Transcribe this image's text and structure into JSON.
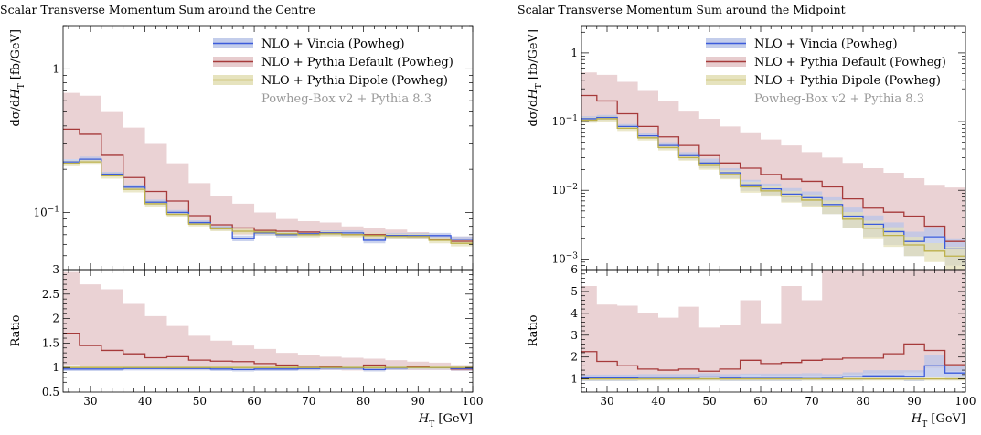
{
  "colors": {
    "vincia": "#3b5bdb",
    "vincia_band": "#b9c4e8",
    "default": "#a63a3a",
    "default_band": "#e3c3c6",
    "dipole": "#bdb14a",
    "dipole_band": "#e2deb3",
    "note": "#999999"
  },
  "chart_data": [
    {
      "type": "line",
      "title": "Scalar Transverse Momentum Sum around the Centre",
      "xlabel": "H_T [GeV]",
      "xlabel_main": "H",
      "xlabel_sub": "T",
      "xlabel_unit": "[GeV]",
      "ylabel": "dσ/dH_T [fb/GeV]",
      "ylabel_lead": "dσ/d",
      "ylabel_var": "H",
      "ylabel_sub": "T",
      "ylabel_unit": "[fb/GeV]",
      "ratio_ylabel": "Ratio",
      "xlim": [
        25,
        100
      ],
      "ylim": [
        0.04,
        2.0
      ],
      "yscale": "log",
      "ratio_ylim": [
        0.5,
        3.0
      ],
      "x_ticks": [
        30,
        40,
        50,
        60,
        70,
        80,
        90,
        100
      ],
      "x_ticks_label": [
        "30",
        "40",
        "50",
        "60",
        "70",
        "80",
        "90",
        "100"
      ],
      "y_ticks": [
        1,
        0.1
      ],
      "y_ticks_label": [
        "1",
        "10^{−1}"
      ],
      "ratio_ticks": [
        0.5,
        1,
        1.5,
        2,
        2.5,
        3
      ],
      "ratio_ticks_label": [
        "0.5",
        "1",
        "1.5",
        "2",
        "2.5",
        "3"
      ],
      "legend_position": "top-right",
      "legend": [
        "NLO + Vincia (Powheg)",
        "NLO + Pythia Default (Powheg)",
        "NLO + Pythia Dipole (Powheg)"
      ],
      "legend_note": "Powheg-Box v2 + Pythia 8.3",
      "bin_edges": [
        25,
        28,
        32,
        36,
        40,
        44,
        48,
        52,
        56,
        60,
        64,
        68,
        72,
        76,
        80,
        84,
        88,
        92,
        96,
        100
      ],
      "series": [
        {
          "key": "vincia",
          "values": [
            0.225,
            0.235,
            0.185,
            0.15,
            0.118,
            0.1,
            0.085,
            0.078,
            0.066,
            0.072,
            0.07,
            0.071,
            0.072,
            0.072,
            0.064,
            0.069,
            0.069,
            0.069,
            0.065
          ],
          "band_low": [
            0.215,
            0.225,
            0.178,
            0.144,
            0.113,
            0.096,
            0.082,
            0.075,
            0.063,
            0.069,
            0.067,
            0.068,
            0.069,
            0.069,
            0.061,
            0.066,
            0.066,
            0.066,
            0.062
          ],
          "band_high": [
            0.235,
            0.245,
            0.192,
            0.156,
            0.123,
            0.104,
            0.088,
            0.081,
            0.069,
            0.075,
            0.073,
            0.074,
            0.075,
            0.075,
            0.067,
            0.072,
            0.072,
            0.072,
            0.068
          ]
        },
        {
          "key": "default",
          "values": [
            0.38,
            0.35,
            0.25,
            0.175,
            0.14,
            0.12,
            0.095,
            0.082,
            0.078,
            0.075,
            0.074,
            0.073,
            0.072,
            0.07,
            0.07,
            0.069,
            0.068,
            0.065,
            0.063
          ],
          "band_low": [
            0.235,
            0.23,
            0.18,
            0.146,
            0.117,
            0.098,
            0.084,
            0.077,
            0.07,
            0.07,
            0.069,
            0.069,
            0.069,
            0.068,
            0.066,
            0.067,
            0.066,
            0.064,
            0.061
          ],
          "band_high": [
            0.68,
            0.65,
            0.5,
            0.39,
            0.3,
            0.22,
            0.16,
            0.13,
            0.115,
            0.1,
            0.09,
            0.087,
            0.085,
            0.08,
            0.078,
            0.076,
            0.073,
            0.07,
            0.068
          ]
        },
        {
          "key": "dipole",
          "values": [
            0.22,
            0.225,
            0.18,
            0.145,
            0.115,
            0.097,
            0.083,
            0.077,
            0.074,
            0.073,
            0.071,
            0.07,
            0.071,
            0.07,
            0.069,
            0.068,
            0.068,
            0.064,
            0.061
          ],
          "band_low": [
            0.21,
            0.215,
            0.172,
            0.138,
            0.11,
            0.093,
            0.08,
            0.074,
            0.071,
            0.07,
            0.068,
            0.067,
            0.068,
            0.067,
            0.066,
            0.065,
            0.065,
            0.061,
            0.058
          ],
          "band_high": [
            0.23,
            0.235,
            0.188,
            0.152,
            0.12,
            0.101,
            0.086,
            0.08,
            0.077,
            0.076,
            0.074,
            0.073,
            0.074,
            0.073,
            0.072,
            0.071,
            0.071,
            0.067,
            0.064
          ]
        }
      ],
      "ratio_series": [
        {
          "key": "vincia",
          "values": [
            0.97,
            0.97,
            0.97,
            0.98,
            0.98,
            0.98,
            0.98,
            0.97,
            0.96,
            0.97,
            0.97,
            0.98,
            0.99,
            0.99,
            0.96,
            0.99,
            1.0,
            1.0,
            0.98
          ],
          "band_low": [
            0.93,
            0.93,
            0.93,
            0.94,
            0.94,
            0.94,
            0.94,
            0.93,
            0.92,
            0.93,
            0.93,
            0.94,
            0.95,
            0.95,
            0.92,
            0.95,
            0.96,
            0.96,
            0.94
          ],
          "band_high": [
            1.01,
            1.01,
            1.01,
            1.02,
            1.02,
            1.02,
            1.02,
            1.01,
            1.0,
            1.01,
            1.01,
            1.02,
            1.03,
            1.03,
            1.0,
            1.03,
            1.04,
            1.04,
            1.02
          ]
        },
        {
          "key": "default",
          "values": [
            1.7,
            1.45,
            1.35,
            1.28,
            1.2,
            1.22,
            1.15,
            1.13,
            1.12,
            1.08,
            1.05,
            1.03,
            1.02,
            1.0,
            1.05,
            1.0,
            1.01,
            1.0,
            0.97
          ],
          "band_low": [
            1.05,
            1.0,
            1.0,
            0.98,
            0.98,
            0.96,
            0.96,
            0.96,
            0.95,
            0.95,
            0.95,
            0.95,
            0.95,
            0.94,
            0.94,
            0.95,
            0.95,
            0.95,
            0.93
          ],
          "band_high": [
            2.95,
            2.7,
            2.6,
            2.3,
            2.05,
            1.85,
            1.65,
            1.55,
            1.45,
            1.38,
            1.3,
            1.25,
            1.22,
            1.2,
            1.18,
            1.15,
            1.12,
            1.1,
            1.05
          ]
        },
        {
          "key": "dipole",
          "values": [
            1.0,
            1.0,
            1.0,
            1.0,
            1.0,
            1.0,
            1.0,
            1.0,
            1.0,
            1.0,
            1.0,
            1.0,
            1.0,
            1.0,
            1.0,
            1.0,
            1.0,
            1.0,
            1.0
          ],
          "band_low": [
            0.97,
            0.97,
            0.97,
            0.97,
            0.97,
            0.97,
            0.97,
            0.97,
            0.97,
            0.97,
            0.97,
            0.97,
            0.97,
            0.97,
            0.97,
            0.97,
            0.97,
            0.97,
            0.97
          ],
          "band_high": [
            1.03,
            1.03,
            1.03,
            1.03,
            1.03,
            1.03,
            1.03,
            1.03,
            1.03,
            1.03,
            1.03,
            1.03,
            1.03,
            1.03,
            1.03,
            1.03,
            1.03,
            1.03,
            1.03
          ]
        }
      ]
    },
    {
      "type": "line",
      "title": "Scalar Transverse Momentum Sum around the Midpoint",
      "xlabel": "H_T [GeV]",
      "xlabel_main": "H",
      "xlabel_sub": "T",
      "xlabel_unit": "[GeV]",
      "ylabel": "dσ/dH_T [fb/GeV]",
      "ylabel_lead": "dσ/d",
      "ylabel_var": "H",
      "ylabel_sub": "T",
      "ylabel_unit": "[fb/GeV]",
      "ratio_ylabel": "Ratio",
      "xlim": [
        25,
        100
      ],
      "ylim": [
        0.0007,
        2.5
      ],
      "yscale": "log",
      "ratio_ylim": [
        0.4,
        6.0
      ],
      "x_ticks": [
        30,
        40,
        50,
        60,
        70,
        80,
        90,
        100
      ],
      "x_ticks_label": [
        "30",
        "40",
        "50",
        "60",
        "70",
        "80",
        "90",
        "100"
      ],
      "y_ticks": [
        1,
        0.1,
        0.01,
        0.001
      ],
      "y_ticks_label": [
        "1",
        "10^{−1}",
        "10^{−2}",
        "10^{−3}"
      ],
      "ratio_ticks": [
        1,
        2,
        3,
        4,
        5,
        6
      ],
      "ratio_ticks_label": [
        "1",
        "2",
        "3",
        "4",
        "5",
        "6"
      ],
      "legend_position": "top-right",
      "legend": [
        "NLO + Vincia (Powheg)",
        "NLO + Pythia Default (Powheg)",
        "NLO + Pythia Dipole (Powheg)"
      ],
      "legend_note": "Powheg-Box v2 + Pythia 8.3",
      "bin_edges": [
        25,
        28,
        32,
        36,
        40,
        44,
        48,
        52,
        56,
        60,
        64,
        68,
        72,
        76,
        80,
        84,
        88,
        92,
        96,
        100
      ],
      "series": [
        {
          "key": "vincia",
          "values": [
            0.11,
            0.115,
            0.085,
            0.062,
            0.045,
            0.032,
            0.025,
            0.018,
            0.012,
            0.0105,
            0.0088,
            0.0078,
            0.0062,
            0.0042,
            0.0032,
            0.0025,
            0.0018,
            0.0021,
            0.0014
          ],
          "band_low": [
            0.1,
            0.105,
            0.078,
            0.056,
            0.04,
            0.028,
            0.021,
            0.015,
            0.0098,
            0.0085,
            0.0068,
            0.006,
            0.0045,
            0.0028,
            0.0021,
            0.0016,
            0.0011,
            0.0013,
            0.0008
          ],
          "band_high": [
            0.12,
            0.125,
            0.092,
            0.068,
            0.05,
            0.036,
            0.029,
            0.021,
            0.0142,
            0.0125,
            0.0108,
            0.0096,
            0.0079,
            0.0056,
            0.0043,
            0.0034,
            0.0025,
            0.0029,
            0.002
          ]
        },
        {
          "key": "default",
          "values": [
            0.24,
            0.2,
            0.13,
            0.085,
            0.06,
            0.045,
            0.032,
            0.025,
            0.021,
            0.017,
            0.0145,
            0.0135,
            0.0112,
            0.0075,
            0.0055,
            0.0048,
            0.0042,
            0.003,
            0.0018
          ],
          "band_low": [
            0.11,
            0.11,
            0.085,
            0.062,
            0.046,
            0.034,
            0.025,
            0.019,
            0.0135,
            0.0115,
            0.0095,
            0.0082,
            0.0068,
            0.0048,
            0.0036,
            0.0028,
            0.0021,
            0.0022,
            0.0015
          ],
          "band_high": [
            0.52,
            0.48,
            0.38,
            0.28,
            0.2,
            0.14,
            0.11,
            0.085,
            0.07,
            0.055,
            0.045,
            0.036,
            0.03,
            0.025,
            0.021,
            0.018,
            0.015,
            0.012,
            0.011
          ]
        },
        {
          "key": "dipole",
          "values": [
            0.105,
            0.11,
            0.08,
            0.058,
            0.042,
            0.03,
            0.023,
            0.017,
            0.0112,
            0.0098,
            0.0082,
            0.0072,
            0.0058,
            0.0038,
            0.0028,
            0.0022,
            0.0016,
            0.0013,
            0.0011
          ],
          "band_low": [
            0.096,
            0.1,
            0.073,
            0.053,
            0.038,
            0.027,
            0.02,
            0.0145,
            0.0092,
            0.0081,
            0.0066,
            0.0058,
            0.0045,
            0.0028,
            0.002,
            0.0015,
            0.0011,
            0.0009,
            0.0007
          ],
          "band_high": [
            0.115,
            0.12,
            0.087,
            0.063,
            0.046,
            0.033,
            0.026,
            0.0195,
            0.0132,
            0.0115,
            0.0098,
            0.0086,
            0.0071,
            0.0048,
            0.0036,
            0.0029,
            0.0021,
            0.0017,
            0.0015
          ]
        }
      ],
      "ratio_series": [
        {
          "key": "vincia",
          "values": [
            1.05,
            1.05,
            1.05,
            1.07,
            1.07,
            1.07,
            1.09,
            1.06,
            1.07,
            1.07,
            1.07,
            1.08,
            1.07,
            1.1,
            1.14,
            1.14,
            1.12,
            1.6,
            1.27
          ],
          "band_low": [
            0.9,
            0.9,
            0.9,
            0.92,
            0.92,
            0.92,
            0.92,
            0.9,
            0.9,
            0.9,
            0.9,
            0.92,
            0.92,
            0.92,
            0.95,
            0.95,
            0.9,
            1.1,
            0.95
          ],
          "band_high": [
            1.2,
            1.2,
            1.2,
            1.22,
            1.22,
            1.22,
            1.26,
            1.22,
            1.24,
            1.24,
            1.24,
            1.26,
            1.22,
            1.3,
            1.4,
            1.4,
            1.4,
            2.1,
            1.6
          ]
        },
        {
          "key": "default",
          "values": [
            2.25,
            1.8,
            1.6,
            1.45,
            1.4,
            1.45,
            1.35,
            1.45,
            1.85,
            1.7,
            1.75,
            1.85,
            1.9,
            1.95,
            1.95,
            2.15,
            2.6,
            2.3,
            1.65
          ],
          "band_low": [
            1.05,
            1.0,
            1.05,
            1.05,
            1.1,
            1.1,
            1.1,
            1.1,
            1.2,
            1.15,
            1.15,
            1.15,
            1.15,
            1.2,
            1.25,
            1.25,
            1.3,
            1.5,
            1.35
          ],
          "band_high": [
            5.25,
            4.4,
            4.35,
            4.0,
            3.8,
            4.3,
            3.35,
            3.45,
            4.6,
            3.55,
            5.25,
            4.6,
            6.0,
            6.0,
            6.0,
            6.0,
            6.0,
            6.0,
            6.0
          ]
        },
        {
          "key": "dipole",
          "values": [
            1.0,
            1.0,
            1.0,
            1.0,
            1.0,
            1.0,
            1.0,
            1.0,
            1.0,
            1.0,
            1.0,
            1.0,
            1.0,
            1.0,
            1.0,
            1.0,
            1.0,
            1.0,
            1.0
          ],
          "band_low": [
            0.93,
            0.93,
            0.93,
            0.93,
            0.93,
            0.93,
            0.93,
            0.93,
            0.93,
            0.93,
            0.93,
            0.93,
            0.93,
            0.93,
            0.93,
            0.93,
            0.93,
            0.93,
            0.93
          ],
          "band_high": [
            1.07,
            1.07,
            1.07,
            1.07,
            1.07,
            1.07,
            1.07,
            1.07,
            1.07,
            1.07,
            1.07,
            1.07,
            1.07,
            1.07,
            1.07,
            1.07,
            1.07,
            1.07,
            1.07
          ]
        }
      ]
    }
  ]
}
